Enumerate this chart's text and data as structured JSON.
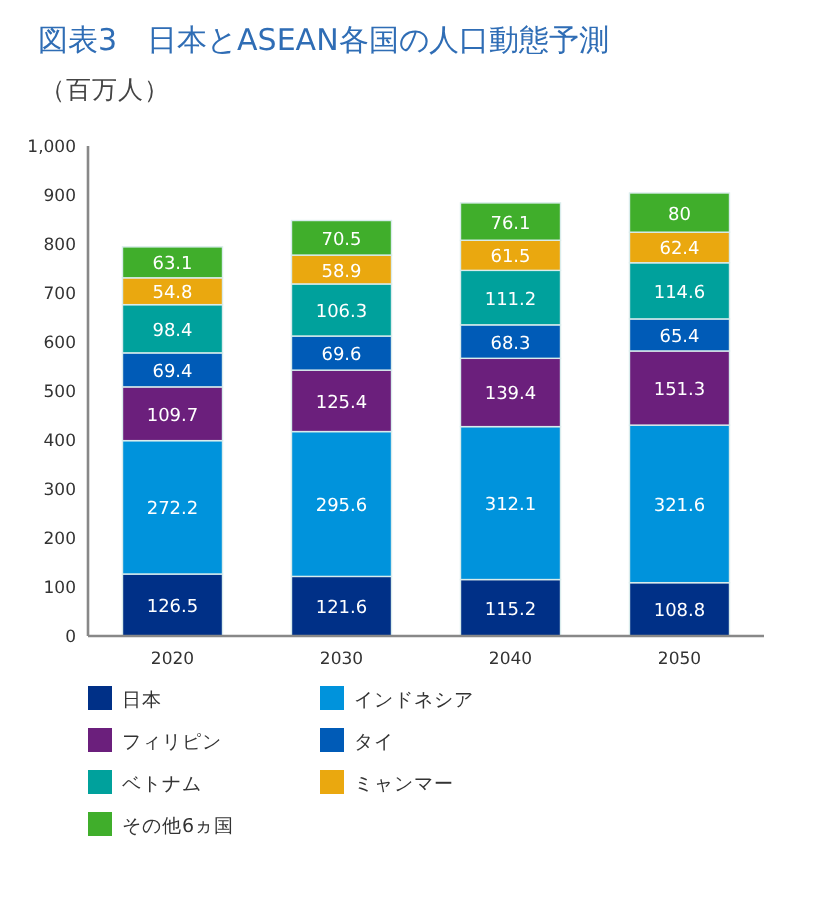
{
  "chart_data": {
    "type": "bar",
    "stacked": true,
    "title": "図表3　日本とASEAN各国の人口動態予測",
    "ylabel": "（百万人）",
    "categories": [
      "2020",
      "2030",
      "2040",
      "2050"
    ],
    "series": [
      {
        "name": "日本",
        "color": "#003087",
        "values": [
          126.5,
          121.6,
          115.2,
          108.8
        ]
      },
      {
        "name": "インドネシア",
        "color": "#0093dc",
        "values": [
          272.2,
          295.6,
          312.1,
          321.6
        ]
      },
      {
        "name": "フィリピン",
        "color": "#6b1f7c",
        "values": [
          109.7,
          125.4,
          139.4,
          151.3
        ]
      },
      {
        "name": "タイ",
        "color": "#005bb7",
        "values": [
          69.4,
          69.6,
          68.3,
          65.4
        ]
      },
      {
        "name": "ベトナム",
        "color": "#00a19c",
        "values": [
          98.4,
          106.3,
          111.2,
          114.6
        ]
      },
      {
        "name": "ミャンマー",
        "color": "#eaa80f",
        "values": [
          54.8,
          58.9,
          61.5,
          62.4
        ]
      },
      {
        "name": "その他6ヵ国",
        "color": "#40ae2b",
        "values": [
          63.1,
          70.5,
          76.1,
          80
        ]
      }
    ],
    "ylim": [
      0,
      1000
    ],
    "yticks": [
      0,
      100,
      200,
      300,
      400,
      500,
      600,
      700,
      800,
      900,
      {
        "value": 1000,
        "label": "1,000"
      }
    ],
    "data_labels": true,
    "legend": "bottom"
  }
}
